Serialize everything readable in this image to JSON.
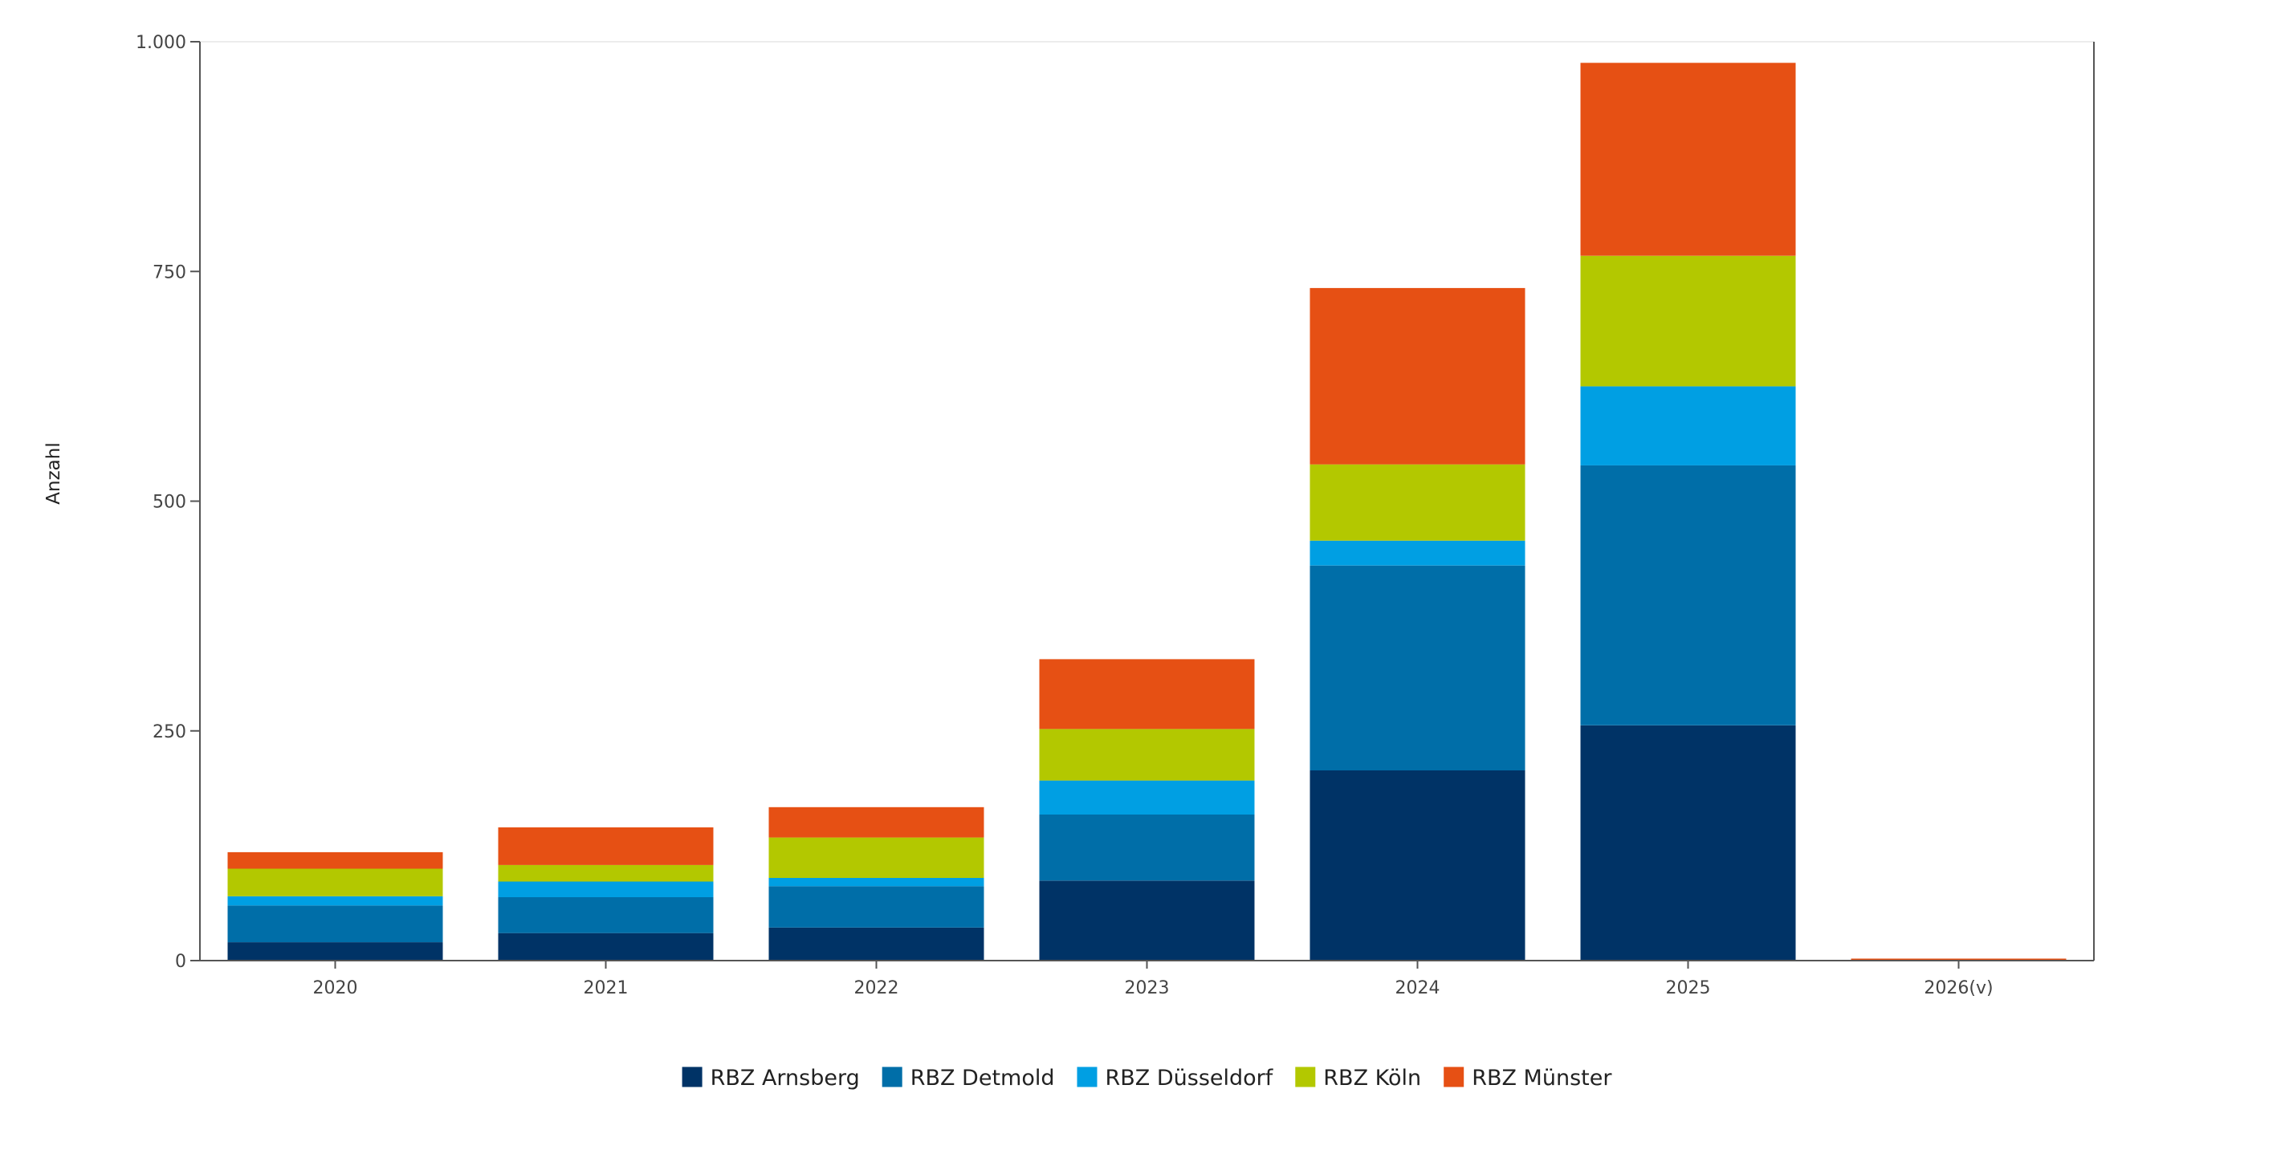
{
  "chart_data": {
    "type": "bar",
    "stacked": true,
    "categories": [
      "2020",
      "2021",
      "2022",
      "2023",
      "2024",
      "2025",
      "2026(v)"
    ],
    "series": [
      {
        "name": "RBZ Arnsberg",
        "color": "#003366",
        "values": [
          20,
          30,
          36,
          87,
          207,
          256,
          0
        ]
      },
      {
        "name": "RBZ Detmold",
        "color": "#006EA8",
        "values": [
          40,
          39,
          45,
          72,
          223,
          283,
          0
        ]
      },
      {
        "name": "RBZ Düsseldorf",
        "color": "#009FE3",
        "values": [
          10,
          17,
          9,
          37,
          27,
          86,
          0
        ]
      },
      {
        "name": "RBZ Köln",
        "color": "#B3C800",
        "values": [
          30,
          18,
          44,
          56,
          83,
          142,
          0
        ]
      },
      {
        "name": "RBZ Münster",
        "color": "#E65014",
        "values": [
          18,
          41,
          33,
          76,
          192,
          210,
          0
        ]
      }
    ],
    "xlabel": "",
    "ylabel": "Anzahl",
    "ylim": [
      0,
      1000
    ],
    "yticks": [
      {
        "value": 0,
        "label": "0"
      },
      {
        "value": 250,
        "label": "250"
      },
      {
        "value": 500,
        "label": "500"
      },
      {
        "value": 750,
        "label": "750"
      },
      {
        "value": 1000,
        "label": "1.000"
      }
    ],
    "grid": false,
    "legend_position": "bottom"
  }
}
